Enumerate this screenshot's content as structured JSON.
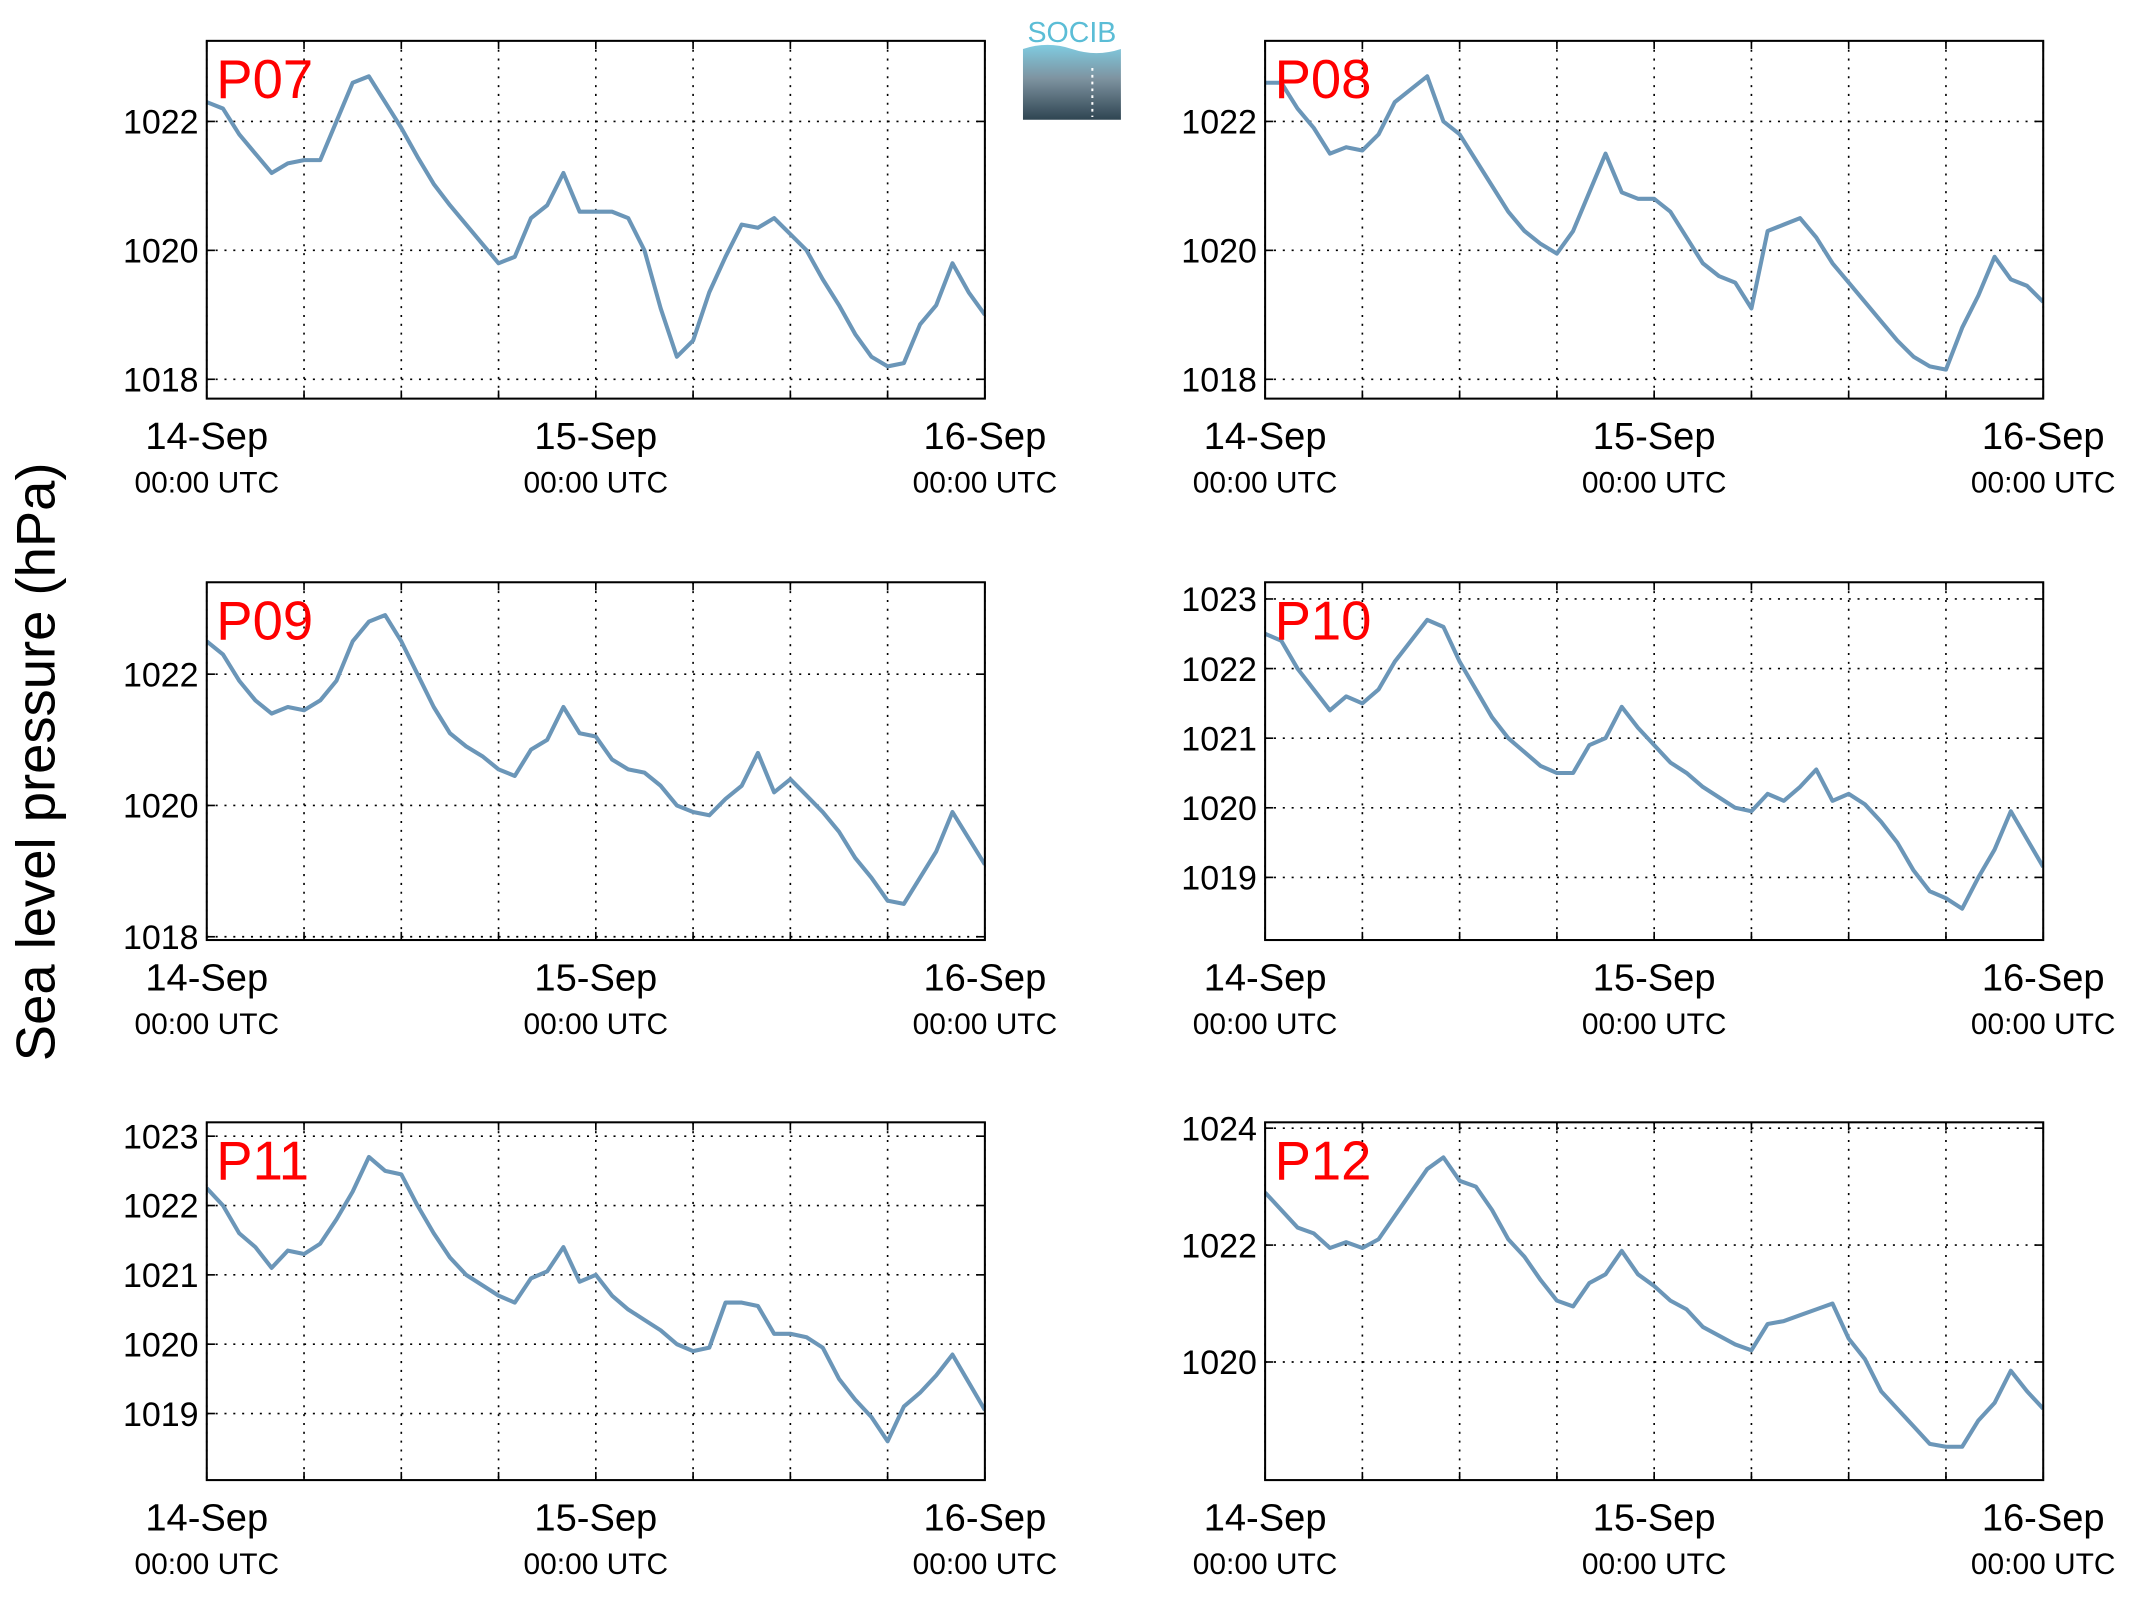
{
  "ylabel": "Sea level pressure (hPa)",
  "logo": "SOCIB",
  "chart_data": [
    {
      "type": "line",
      "title": "P07",
      "color": "#6b96b8",
      "x": [
        0,
        1,
        2,
        3,
        4,
        5,
        6,
        7,
        8,
        9,
        10,
        11,
        12,
        13,
        14,
        15,
        16,
        17,
        18,
        19,
        20,
        21,
        22,
        23,
        24,
        25,
        26,
        27,
        28,
        29,
        30,
        31,
        32,
        33,
        34,
        35,
        36,
        37,
        38,
        39,
        40,
        41,
        42,
        43,
        44,
        45,
        46,
        47,
        48
      ],
      "values": [
        1022.3,
        1022.2,
        1021.8,
        1021.5,
        1021.2,
        1021.35,
        1021.4,
        1021.4,
        1022,
        1022.6,
        1022.7,
        1022.3,
        1021.9,
        1021.45,
        1021.03,
        1020.7,
        1020.4,
        1020.1,
        1019.8,
        1019.9,
        1020.5,
        1020.7,
        1021.2,
        1020.6,
        1020.6,
        1020.6,
        1020.5,
        1020,
        1019.1,
        1018.35,
        1018.6,
        1019.35,
        1019.9,
        1020.4,
        1020.35,
        1020.5,
        1020.25,
        1020,
        1019.55,
        1019.15,
        1018.7,
        1018.35,
        1018.2,
        1018.25,
        1018.85,
        1019.15,
        1019.8,
        1019.35,
        1019
      ],
      "xlim": [
        0,
        48
      ],
      "xticks": [
        {
          "value": 0,
          "label": [
            "14-Sep",
            "00:00 UTC"
          ]
        },
        {
          "value": 24,
          "label": [
            "15-Sep",
            "00:00 UTC"
          ]
        },
        {
          "value": 48,
          "label": [
            "16-Sep",
            "00:00 UTC"
          ]
        }
      ],
      "xminorticks": [
        6,
        12,
        18,
        30,
        36,
        42
      ],
      "ylim": [
        1017.7,
        1023.25
      ],
      "yticks": [
        1018,
        1020,
        1022
      ],
      "grid": true
    },
    {
      "type": "line",
      "title": "P08",
      "color": "#6b96b8",
      "x": [
        0,
        1,
        2,
        3,
        4,
        5,
        6,
        7,
        8,
        9,
        10,
        11,
        12,
        13,
        14,
        15,
        16,
        17,
        18,
        19,
        20,
        21,
        22,
        23,
        24,
        25,
        26,
        27,
        28,
        29,
        30,
        31,
        32,
        33,
        34,
        35,
        36,
        37,
        38,
        39,
        40,
        41,
        42,
        43,
        44,
        45,
        46,
        47,
        48
      ],
      "values": [
        1022.6,
        1022.6,
        1022.2,
        1021.9,
        1021.5,
        1021.6,
        1021.55,
        1021.8,
        1022.3,
        1022.5,
        1022.7,
        1022,
        1021.8,
        1021.4,
        1021,
        1020.6,
        1020.3,
        1020.1,
        1019.95,
        1020.3,
        1020.9,
        1021.5,
        1020.9,
        1020.8,
        1020.8,
        1020.6,
        1020.2,
        1019.8,
        1019.6,
        1019.5,
        1019.1,
        1020.3,
        1020.4,
        1020.5,
        1020.2,
        1019.8,
        1019.5,
        1019.2,
        1018.9,
        1018.6,
        1018.35,
        1018.2,
        1018.15,
        1018.8,
        1019.3,
        1019.9,
        1019.55,
        1019.45,
        1019.2
      ],
      "xlim": [
        0,
        48
      ],
      "xticks": [
        {
          "value": 0,
          "label": [
            "14-Sep",
            "00:00 UTC"
          ]
        },
        {
          "value": 24,
          "label": [
            "15-Sep",
            "00:00 UTC"
          ]
        },
        {
          "value": 48,
          "label": [
            "16-Sep",
            "00:00 UTC"
          ]
        }
      ],
      "xminorticks": [
        6,
        12,
        18,
        30,
        36,
        42
      ],
      "ylim": [
        1017.7,
        1023.25
      ],
      "yticks": [
        1018,
        1020,
        1022
      ],
      "grid": true
    },
    {
      "type": "line",
      "title": "P09",
      "color": "#6b96b8",
      "x": [
        0,
        1,
        2,
        3,
        4,
        5,
        6,
        7,
        8,
        9,
        10,
        11,
        12,
        13,
        14,
        15,
        16,
        17,
        18,
        19,
        20,
        21,
        22,
        23,
        24,
        25,
        26,
        27,
        28,
        29,
        30,
        31,
        32,
        33,
        34,
        35,
        36,
        37,
        38,
        39,
        40,
        41,
        42,
        43,
        44,
        45,
        46,
        47,
        48
      ],
      "values": [
        1022.5,
        1022.3,
        1021.9,
        1021.6,
        1021.4,
        1021.5,
        1021.45,
        1021.6,
        1021.9,
        1022.5,
        1022.8,
        1022.9,
        1022.5,
        1022,
        1021.5,
        1021.1,
        1020.9,
        1020.75,
        1020.55,
        1020.45,
        1020.85,
        1021,
        1021.5,
        1021.1,
        1021.05,
        1020.7,
        1020.55,
        1020.5,
        1020.3,
        1020,
        1019.9,
        1019.85,
        1020.1,
        1020.3,
        1020.8,
        1020.2,
        1020.4,
        1020.15,
        1019.9,
        1019.6,
        1019.2,
        1018.9,
        1018.55,
        1018.5,
        1018.9,
        1019.3,
        1019.9,
        1019.5,
        1019.1
      ],
      "xlim": [
        0,
        48
      ],
      "xticks": [
        {
          "value": 0,
          "label": [
            "14-Sep",
            "00:00 UTC"
          ]
        },
        {
          "value": 24,
          "label": [
            "15-Sep",
            "00:00 UTC"
          ]
        },
        {
          "value": 48,
          "label": [
            "16-Sep",
            "00:00 UTC"
          ]
        }
      ],
      "xminorticks": [
        6,
        12,
        18,
        30,
        36,
        42
      ],
      "ylim": [
        1017.95,
        1023.4
      ],
      "yticks": [
        1018,
        1020,
        1022
      ],
      "grid": true
    },
    {
      "type": "line",
      "title": "P10",
      "color": "#6b96b8",
      "x": [
        0,
        1,
        2,
        3,
        4,
        5,
        6,
        7,
        8,
        9,
        10,
        11,
        12,
        13,
        14,
        15,
        16,
        17,
        18,
        19,
        20,
        21,
        22,
        23,
        24,
        25,
        26,
        27,
        28,
        29,
        30,
        31,
        32,
        33,
        34,
        35,
        36,
        37,
        38,
        39,
        40,
        41,
        42,
        43,
        44,
        45,
        46,
        47,
        48
      ],
      "values": [
        1022.5,
        1022.4,
        1022,
        1021.7,
        1021.4,
        1021.6,
        1021.5,
        1021.7,
        1022.1,
        1022.4,
        1022.7,
        1022.6,
        1022.1,
        1021.7,
        1021.3,
        1021,
        1020.8,
        1020.6,
        1020.5,
        1020.5,
        1020.9,
        1021,
        1021.45,
        1021.15,
        1020.9,
        1020.65,
        1020.5,
        1020.3,
        1020.15,
        1020,
        1019.95,
        1020.2,
        1020.1,
        1020.3,
        1020.55,
        1020.1,
        1020.2,
        1020.05,
        1019.8,
        1019.5,
        1019.1,
        1018.8,
        1018.7,
        1018.55,
        1019,
        1019.4,
        1019.95,
        1019.55,
        1019.15
      ],
      "xlim": [
        0,
        48
      ],
      "xticks": [
        {
          "value": 0,
          "label": [
            "14-Sep",
            "00:00 UTC"
          ]
        },
        {
          "value": 24,
          "label": [
            "15-Sep",
            "00:00 UTC"
          ]
        },
        {
          "value": 48,
          "label": [
            "16-Sep",
            "00:00 UTC"
          ]
        }
      ],
      "xminorticks": [
        6,
        12,
        18,
        30,
        36,
        42
      ],
      "ylim": [
        1018.1,
        1023.24
      ],
      "yticks": [
        1019,
        1020,
        1021,
        1022,
        1023
      ],
      "grid": true
    },
    {
      "type": "line",
      "title": "P11",
      "color": "#6b96b8",
      "x": [
        0,
        1,
        2,
        3,
        4,
        5,
        6,
        7,
        8,
        9,
        10,
        11,
        12,
        13,
        14,
        15,
        16,
        17,
        18,
        19,
        20,
        21,
        22,
        23,
        24,
        25,
        26,
        27,
        28,
        29,
        30,
        31,
        32,
        33,
        34,
        35,
        36,
        37,
        38,
        39,
        40,
        41,
        42,
        43,
        44,
        45,
        46,
        47,
        48
      ],
      "values": [
        1022.25,
        1022,
        1021.6,
        1021.4,
        1021.1,
        1021.35,
        1021.3,
        1021.45,
        1021.8,
        1022.2,
        1022.7,
        1022.5,
        1022.45,
        1022,
        1021.6,
        1021.25,
        1021,
        1020.85,
        1020.7,
        1020.6,
        1020.95,
        1021.05,
        1021.4,
        1020.9,
        1021,
        1020.7,
        1020.5,
        1020.35,
        1020.2,
        1020,
        1019.9,
        1019.95,
        1020.6,
        1020.6,
        1020.55,
        1020.15,
        1020.15,
        1020.1,
        1019.95,
        1019.5,
        1019.2,
        1018.95,
        1018.6,
        1019.1,
        1019.3,
        1019.55,
        1019.85,
        1019.45,
        1019.05
      ],
      "xlim": [
        0,
        48
      ],
      "xticks": [
        {
          "value": 0,
          "label": [
            "14-Sep",
            "00:00 UTC"
          ]
        },
        {
          "value": 24,
          "label": [
            "15-Sep",
            "00:00 UTC"
          ]
        },
        {
          "value": 48,
          "label": [
            "16-Sep",
            "00:00 UTC"
          ]
        }
      ],
      "xminorticks": [
        6,
        12,
        18,
        30,
        36,
        42
      ],
      "ylim": [
        1018.04,
        1023.2
      ],
      "yticks": [
        1019,
        1020,
        1021,
        1022,
        1023
      ],
      "grid": true
    },
    {
      "type": "line",
      "title": "P12",
      "color": "#6b96b8",
      "x": [
        0,
        1,
        2,
        3,
        4,
        5,
        6,
        7,
        8,
        9,
        10,
        11,
        12,
        13,
        14,
        15,
        16,
        17,
        18,
        19,
        20,
        21,
        22,
        23,
        24,
        25,
        26,
        27,
        28,
        29,
        30,
        31,
        32,
        33,
        34,
        35,
        36,
        37,
        38,
        39,
        40,
        41,
        42,
        43,
        44,
        45,
        46,
        47,
        48
      ],
      "values": [
        1022.9,
        1022.6,
        1022.3,
        1022.2,
        1021.95,
        1022.05,
        1021.95,
        1022.1,
        1022.5,
        1022.9,
        1023.3,
        1023.5,
        1023.1,
        1023,
        1022.6,
        1022.1,
        1021.8,
        1021.4,
        1021.05,
        1020.95,
        1021.35,
        1021.5,
        1021.9,
        1021.5,
        1021.3,
        1021.05,
        1020.9,
        1020.6,
        1020.45,
        1020.3,
        1020.2,
        1020.65,
        1020.7,
        1020.8,
        1020.9,
        1021,
        1020.4,
        1020.05,
        1019.5,
        1019.2,
        1018.9,
        1018.6,
        1018.55,
        1018.55,
        1019,
        1019.3,
        1019.85,
        1019.5,
        1019.2
      ],
      "xlim": [
        0,
        48
      ],
      "xticks": [
        {
          "value": 0,
          "label": [
            "14-Sep",
            "00:00 UTC"
          ]
        },
        {
          "value": 24,
          "label": [
            "15-Sep",
            "00:00 UTC"
          ]
        },
        {
          "value": 48,
          "label": [
            "16-Sep",
            "00:00 UTC"
          ]
        }
      ],
      "xminorticks": [
        6,
        12,
        18,
        30,
        36,
        42
      ],
      "ylim": [
        1017.98,
        1024.1
      ],
      "yticks": [
        1020,
        1022,
        1024
      ],
      "grid": true
    }
  ]
}
